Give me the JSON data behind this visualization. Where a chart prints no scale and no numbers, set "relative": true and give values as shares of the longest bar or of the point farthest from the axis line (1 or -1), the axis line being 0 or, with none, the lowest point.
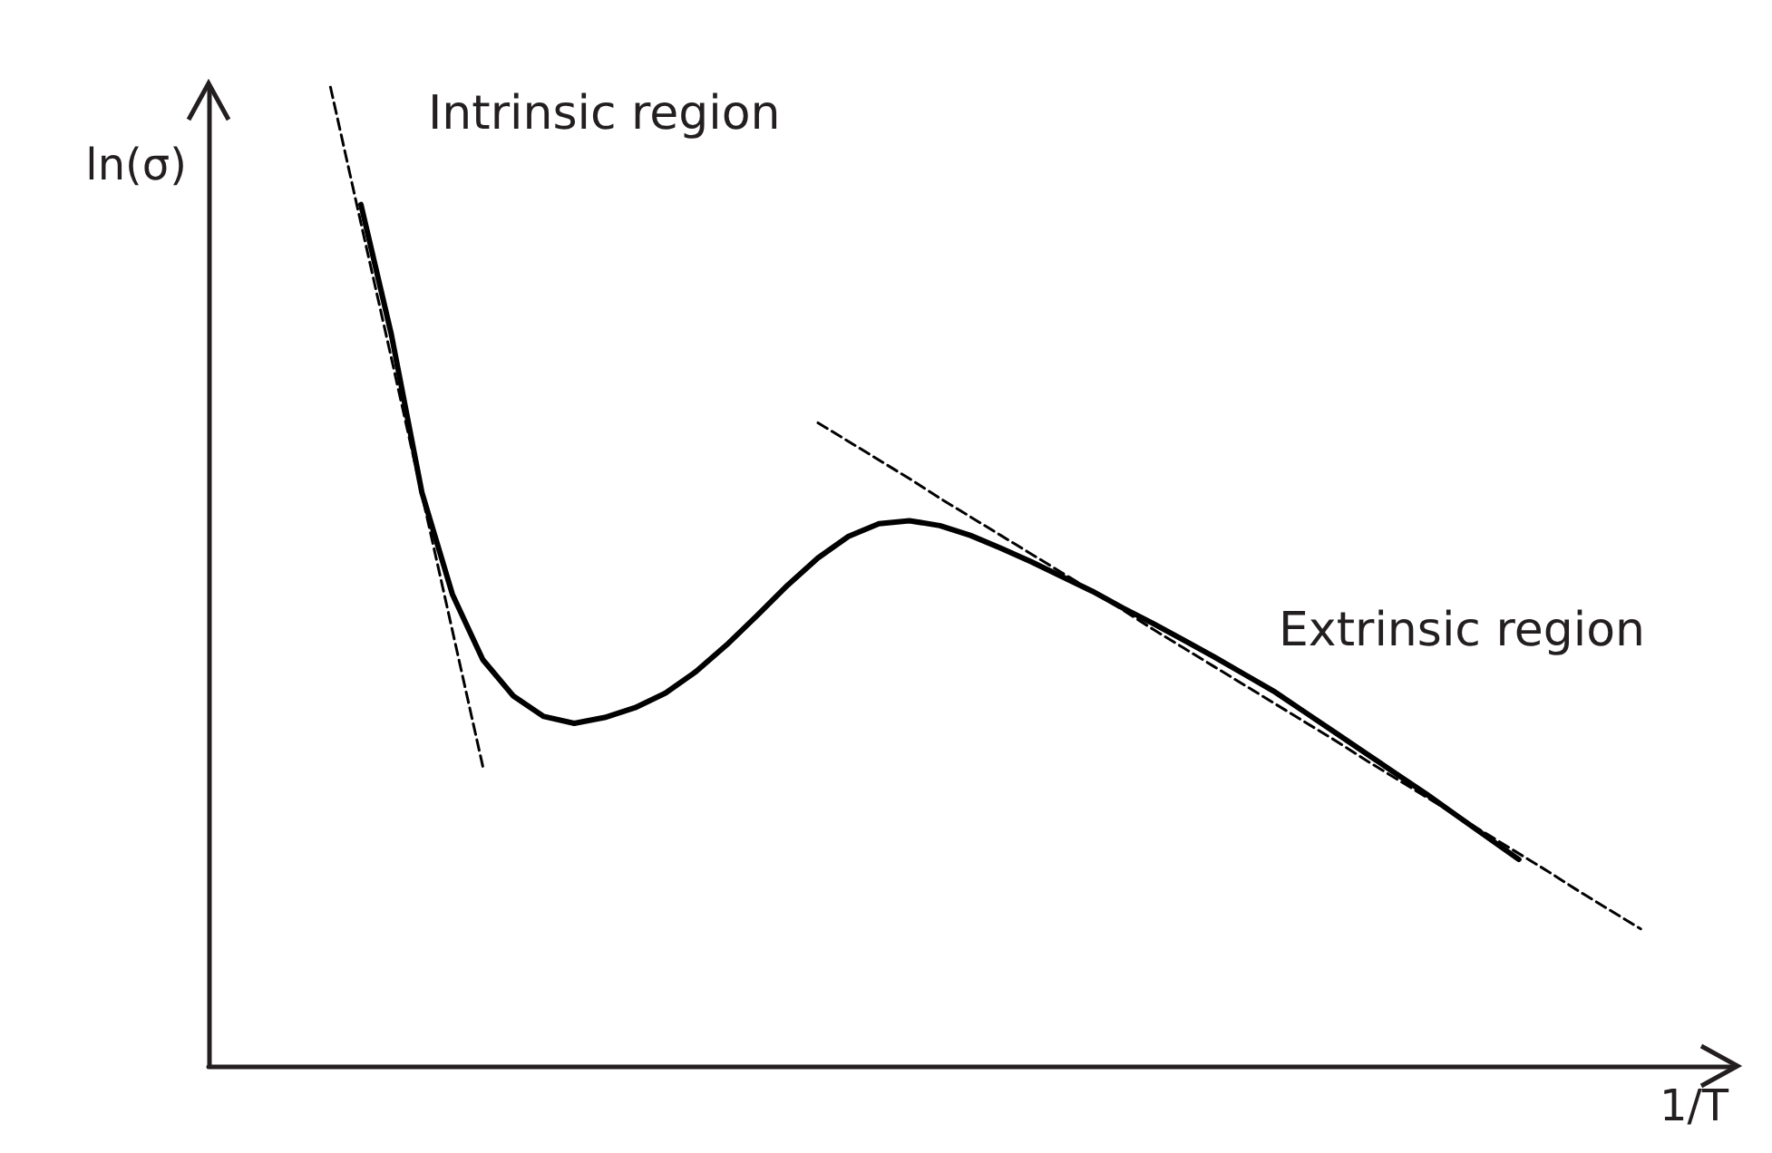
{
  "chart_data": {
    "type": "line",
    "relative": true,
    "xlabel": "1/T",
    "ylabel": "ln(σ)",
    "marker": "none",
    "categories": [
      null,
      null,
      null,
      null,
      null,
      null,
      null,
      null,
      null,
      null,
      null,
      null,
      null,
      null,
      null,
      null,
      null,
      null,
      null,
      null,
      null,
      null,
      null,
      null,
      null,
      null,
      null,
      null,
      null,
      null,
      null,
      null,
      null,
      null,
      null,
      null,
      null,
      null,
      null,
      null,
      null,
      null,
      null,
      null,
      null,
      null,
      null,
      null,
      null,
      null,
      null
    ],
    "series": [
      {
        "color": "#000000",
        "line_style": "solid",
        "values": [
          null,
          null,
          null,
          null,
          null,
          0.88,
          0.747,
          0.586,
          0.482,
          0.415,
          0.378,
          0.357,
          0.35,
          0.356,
          0.366,
          0.381,
          0.403,
          0.43,
          0.46,
          0.491,
          0.519,
          0.541,
          0.554,
          0.557,
          0.552,
          0.542,
          0.529,
          0.515,
          0.5,
          0.485,
          0.468,
          0.452,
          0.435,
          0.418,
          0.4,
          0.382,
          0.361,
          0.34,
          0.319,
          0.298,
          0.277,
          0.255,
          0.233,
          0.211,
          null,
          null,
          null,
          null,
          null,
          null,
          null
        ]
      },
      {
        "color": "#000000",
        "line_style": "dashed",
        "values": [
          null,
          null,
          null,
          null,
          1.0,
          0.861,
          0.723,
          0.584,
          0.445,
          0.306,
          null,
          null,
          null,
          null,
          null,
          null,
          null,
          null,
          null,
          null,
          null,
          null,
          null,
          null,
          null,
          null,
          null,
          null,
          null,
          null,
          null,
          null,
          null,
          null,
          null,
          null,
          null,
          null,
          null,
          null,
          null,
          null,
          null,
          null,
          null,
          null,
          null,
          null,
          null,
          null,
          null
        ]
      },
      {
        "color": "#000000",
        "line_style": "dashed",
        "values": [
          null,
          null,
          null,
          null,
          null,
          null,
          null,
          null,
          null,
          null,
          null,
          null,
          null,
          null,
          null,
          null,
          null,
          null,
          null,
          null,
          0.657,
          0.638,
          0.619,
          0.6,
          0.58,
          0.561,
          0.542,
          0.523,
          0.504,
          0.485,
          0.466,
          0.446,
          0.427,
          0.408,
          0.389,
          0.37,
          0.351,
          0.332,
          0.312,
          0.293,
          0.274,
          0.255,
          0.236,
          0.217,
          0.198,
          0.178,
          0.159,
          0.14,
          null,
          null,
          null
        ]
      }
    ],
    "annotations": [
      "Intrinsic region",
      "Extrinsic region"
    ]
  }
}
